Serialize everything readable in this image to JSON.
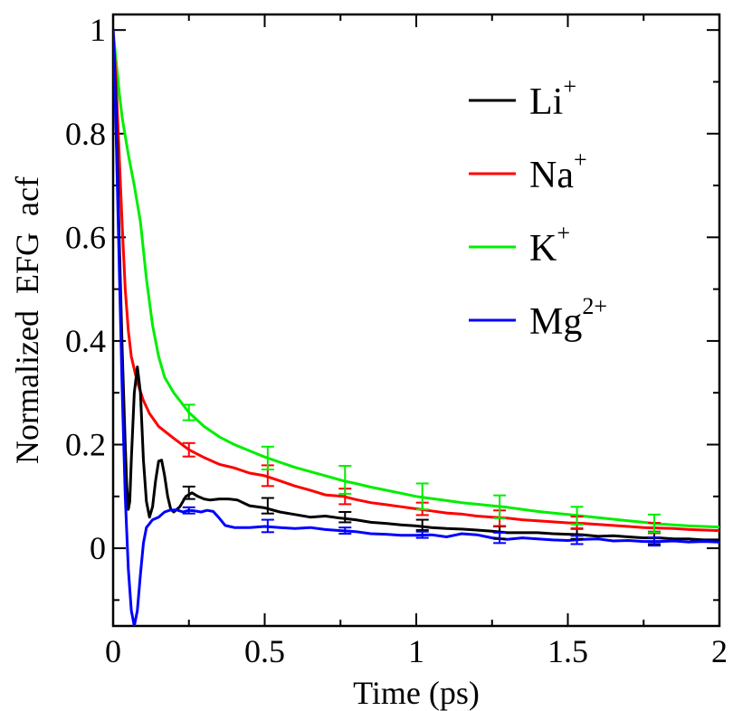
{
  "chart_data": {
    "type": "line",
    "title": "",
    "xlabel": "Time (ps)",
    "ylabel": "Normalized  EFG  acf",
    "xlim": [
      0,
      2
    ],
    "ylim": [
      -0.15,
      1.03
    ],
    "grid": false,
    "legend_position": "top-right",
    "x_ticks": [
      {
        "value": 0,
        "label": "0"
      },
      {
        "value": 0.5,
        "label": "0.5"
      },
      {
        "value": 1,
        "label": "1"
      },
      {
        "value": 1.5,
        "label": "1.5"
      },
      {
        "value": 2,
        "label": "2"
      }
    ],
    "y_ticks": [
      {
        "value": 0,
        "label": "0"
      },
      {
        "value": 0.2,
        "label": "0.2"
      },
      {
        "value": 0.4,
        "label": "0.4"
      },
      {
        "value": 0.6,
        "label": "0.6"
      },
      {
        "value": 0.8,
        "label": "0.8"
      },
      {
        "value": 1,
        "label": "1"
      }
    ],
    "series": [
      {
        "name": "Li",
        "sup": "+",
        "color": "#000000",
        "points": [
          [
            0,
            1.0
          ],
          [
            0.01,
            0.85
          ],
          [
            0.02,
            0.6
          ],
          [
            0.03,
            0.38
          ],
          [
            0.04,
            0.2
          ],
          [
            0.045,
            0.12
          ],
          [
            0.05,
            0.075
          ],
          [
            0.055,
            0.09
          ],
          [
            0.06,
            0.17
          ],
          [
            0.07,
            0.3
          ],
          [
            0.08,
            0.35
          ],
          [
            0.09,
            0.3
          ],
          [
            0.1,
            0.17
          ],
          [
            0.11,
            0.09
          ],
          [
            0.12,
            0.06
          ],
          [
            0.13,
            0.08
          ],
          [
            0.14,
            0.13
          ],
          [
            0.15,
            0.168
          ],
          [
            0.16,
            0.17
          ],
          [
            0.17,
            0.14
          ],
          [
            0.18,
            0.1
          ],
          [
            0.19,
            0.075
          ],
          [
            0.2,
            0.07
          ],
          [
            0.22,
            0.08
          ],
          [
            0.24,
            0.1
          ],
          [
            0.26,
            0.107
          ],
          [
            0.28,
            0.1
          ],
          [
            0.3,
            0.095
          ],
          [
            0.32,
            0.093
          ],
          [
            0.35,
            0.095
          ],
          [
            0.38,
            0.095
          ],
          [
            0.41,
            0.093
          ],
          [
            0.45,
            0.082
          ],
          [
            0.5,
            0.078
          ],
          [
            0.55,
            0.07
          ],
          [
            0.6,
            0.065
          ],
          [
            0.65,
            0.06
          ],
          [
            0.7,
            0.062
          ],
          [
            0.75,
            0.058
          ],
          [
            0.8,
            0.055
          ],
          [
            0.85,
            0.05
          ],
          [
            0.9,
            0.048
          ],
          [
            0.95,
            0.045
          ],
          [
            1.0,
            0.043
          ],
          [
            1.05,
            0.04
          ],
          [
            1.1,
            0.038
          ],
          [
            1.15,
            0.037
          ],
          [
            1.2,
            0.035
          ],
          [
            1.25,
            0.033
          ],
          [
            1.3,
            0.03
          ],
          [
            1.35,
            0.03
          ],
          [
            1.4,
            0.03
          ],
          [
            1.45,
            0.028
          ],
          [
            1.5,
            0.027
          ],
          [
            1.55,
            0.026
          ],
          [
            1.6,
            0.023
          ],
          [
            1.65,
            0.024
          ],
          [
            1.7,
            0.022
          ],
          [
            1.75,
            0.02
          ],
          [
            1.8,
            0.02
          ],
          [
            1.85,
            0.018
          ],
          [
            1.9,
            0.018
          ],
          [
            1.95,
            0.016
          ],
          [
            2.0,
            0.016
          ]
        ],
        "errors": [
          [
            0.25,
            0.107,
            0.012
          ],
          [
            0.51,
            0.082,
            0.015
          ],
          [
            0.765,
            0.06,
            0.01
          ],
          [
            1.02,
            0.045,
            0.01
          ],
          [
            1.275,
            0.03,
            0.012
          ],
          [
            1.53,
            0.028,
            0.01
          ],
          [
            1.785,
            0.02,
            0.012
          ]
        ]
      },
      {
        "name": "Na",
        "sup": "+",
        "color": "#ff0000",
        "points": [
          [
            0,
            1.0
          ],
          [
            0.01,
            0.9
          ],
          [
            0.02,
            0.76
          ],
          [
            0.03,
            0.62
          ],
          [
            0.04,
            0.5
          ],
          [
            0.05,
            0.42
          ],
          [
            0.06,
            0.37
          ],
          [
            0.08,
            0.32
          ],
          [
            0.1,
            0.285
          ],
          [
            0.12,
            0.26
          ],
          [
            0.15,
            0.235
          ],
          [
            0.2,
            0.212
          ],
          [
            0.25,
            0.19
          ],
          [
            0.3,
            0.175
          ],
          [
            0.35,
            0.162
          ],
          [
            0.4,
            0.155
          ],
          [
            0.45,
            0.145
          ],
          [
            0.5,
            0.14
          ],
          [
            0.55,
            0.13
          ],
          [
            0.6,
            0.12
          ],
          [
            0.65,
            0.112
          ],
          [
            0.7,
            0.103
          ],
          [
            0.76,
            0.1
          ],
          [
            0.8,
            0.094
          ],
          [
            0.85,
            0.088
          ],
          [
            0.9,
            0.084
          ],
          [
            0.95,
            0.08
          ],
          [
            1.0,
            0.076
          ],
          [
            1.05,
            0.072
          ],
          [
            1.1,
            0.068
          ],
          [
            1.15,
            0.066
          ],
          [
            1.2,
            0.062
          ],
          [
            1.25,
            0.06
          ],
          [
            1.3,
            0.058
          ],
          [
            1.35,
            0.055
          ],
          [
            1.4,
            0.053
          ],
          [
            1.45,
            0.051
          ],
          [
            1.5,
            0.049
          ],
          [
            1.55,
            0.048
          ],
          [
            1.6,
            0.046
          ],
          [
            1.65,
            0.044
          ],
          [
            1.7,
            0.042
          ],
          [
            1.75,
            0.04
          ],
          [
            1.8,
            0.039
          ],
          [
            1.85,
            0.038
          ],
          [
            1.9,
            0.036
          ],
          [
            1.95,
            0.035
          ],
          [
            2.0,
            0.034
          ]
        ],
        "errors": [
          [
            0.25,
            0.19,
            0.013
          ],
          [
            0.51,
            0.14,
            0.02
          ],
          [
            0.765,
            0.1,
            0.015
          ],
          [
            1.02,
            0.076,
            0.012
          ],
          [
            1.275,
            0.058,
            0.015
          ],
          [
            1.53,
            0.049,
            0.012
          ],
          [
            1.785,
            0.039,
            0.01
          ]
        ]
      },
      {
        "name": "K",
        "sup": "+",
        "color": "#00ee00",
        "points": [
          [
            0,
            1.0
          ],
          [
            0.01,
            0.94
          ],
          [
            0.02,
            0.88
          ],
          [
            0.03,
            0.83
          ],
          [
            0.05,
            0.76
          ],
          [
            0.07,
            0.7
          ],
          [
            0.09,
            0.63
          ],
          [
            0.11,
            0.52
          ],
          [
            0.13,
            0.43
          ],
          [
            0.15,
            0.37
          ],
          [
            0.17,
            0.33
          ],
          [
            0.2,
            0.3
          ],
          [
            0.25,
            0.262
          ],
          [
            0.3,
            0.235
          ],
          [
            0.35,
            0.215
          ],
          [
            0.4,
            0.2
          ],
          [
            0.45,
            0.188
          ],
          [
            0.5,
            0.176
          ],
          [
            0.55,
            0.166
          ],
          [
            0.6,
            0.156
          ],
          [
            0.65,
            0.148
          ],
          [
            0.7,
            0.14
          ],
          [
            0.76,
            0.13
          ],
          [
            0.8,
            0.125
          ],
          [
            0.85,
            0.118
          ],
          [
            0.9,
            0.112
          ],
          [
            0.95,
            0.106
          ],
          [
            1.0,
            0.1
          ],
          [
            1.05,
            0.096
          ],
          [
            1.1,
            0.092
          ],
          [
            1.15,
            0.088
          ],
          [
            1.2,
            0.085
          ],
          [
            1.25,
            0.082
          ],
          [
            1.3,
            0.079
          ],
          [
            1.35,
            0.075
          ],
          [
            1.4,
            0.071
          ],
          [
            1.45,
            0.068
          ],
          [
            1.5,
            0.065
          ],
          [
            1.55,
            0.062
          ],
          [
            1.6,
            0.059
          ],
          [
            1.65,
            0.056
          ],
          [
            1.7,
            0.053
          ],
          [
            1.75,
            0.05
          ],
          [
            1.8,
            0.047
          ],
          [
            1.85,
            0.045
          ],
          [
            1.9,
            0.043
          ],
          [
            1.95,
            0.042
          ],
          [
            2.0,
            0.041
          ]
        ],
        "errors": [
          [
            0.25,
            0.262,
            0.015
          ],
          [
            0.51,
            0.174,
            0.022
          ],
          [
            0.765,
            0.132,
            0.027
          ],
          [
            1.02,
            0.1,
            0.025
          ],
          [
            1.275,
            0.08,
            0.022
          ],
          [
            1.53,
            0.063,
            0.017
          ],
          [
            1.785,
            0.048,
            0.017
          ]
        ]
      },
      {
        "name": "Mg",
        "sup": "2+",
        "color": "#0000ff",
        "points": [
          [
            0,
            1.0
          ],
          [
            0.01,
            0.8
          ],
          [
            0.02,
            0.55
          ],
          [
            0.03,
            0.3
          ],
          [
            0.04,
            0.1
          ],
          [
            0.05,
            -0.04
          ],
          [
            0.06,
            -0.12
          ],
          [
            0.07,
            -0.15
          ],
          [
            0.08,
            -0.12
          ],
          [
            0.09,
            -0.05
          ],
          [
            0.1,
            0.01
          ],
          [
            0.11,
            0.04
          ],
          [
            0.13,
            0.055
          ],
          [
            0.15,
            0.06
          ],
          [
            0.17,
            0.07
          ],
          [
            0.19,
            0.074
          ],
          [
            0.21,
            0.074
          ],
          [
            0.23,
            0.07
          ],
          [
            0.25,
            0.073
          ],
          [
            0.27,
            0.072
          ],
          [
            0.29,
            0.07
          ],
          [
            0.31,
            0.073
          ],
          [
            0.33,
            0.071
          ],
          [
            0.35,
            0.058
          ],
          [
            0.37,
            0.044
          ],
          [
            0.4,
            0.04
          ],
          [
            0.45,
            0.04
          ],
          [
            0.5,
            0.042
          ],
          [
            0.55,
            0.04
          ],
          [
            0.6,
            0.038
          ],
          [
            0.65,
            0.04
          ],
          [
            0.7,
            0.036
          ],
          [
            0.75,
            0.034
          ],
          [
            0.8,
            0.032
          ],
          [
            0.85,
            0.028
          ],
          [
            0.9,
            0.027
          ],
          [
            0.95,
            0.025
          ],
          [
            1.0,
            0.025
          ],
          [
            1.05,
            0.026
          ],
          [
            1.1,
            0.022
          ],
          [
            1.15,
            0.028
          ],
          [
            1.2,
            0.026
          ],
          [
            1.25,
            0.02
          ],
          [
            1.3,
            0.017
          ],
          [
            1.35,
            0.02
          ],
          [
            1.4,
            0.018
          ],
          [
            1.45,
            0.016
          ],
          [
            1.5,
            0.015
          ],
          [
            1.55,
            0.017
          ],
          [
            1.6,
            0.018
          ],
          [
            1.65,
            0.014
          ],
          [
            1.7,
            0.015
          ],
          [
            1.75,
            0.013
          ],
          [
            1.8,
            0.013
          ],
          [
            1.85,
            0.014
          ],
          [
            1.9,
            0.012
          ],
          [
            1.95,
            0.013
          ],
          [
            2.0,
            0.012
          ]
        ],
        "errors": [
          [
            0.25,
            0.073,
            0.006
          ],
          [
            0.51,
            0.043,
            0.012
          ],
          [
            0.765,
            0.034,
            0.006
          ],
          [
            1.02,
            0.026,
            0.006
          ],
          [
            1.275,
            0.02,
            0.01
          ],
          [
            1.53,
            0.016,
            0.008
          ],
          [
            1.785,
            0.013,
            0.008
          ]
        ]
      }
    ]
  }
}
